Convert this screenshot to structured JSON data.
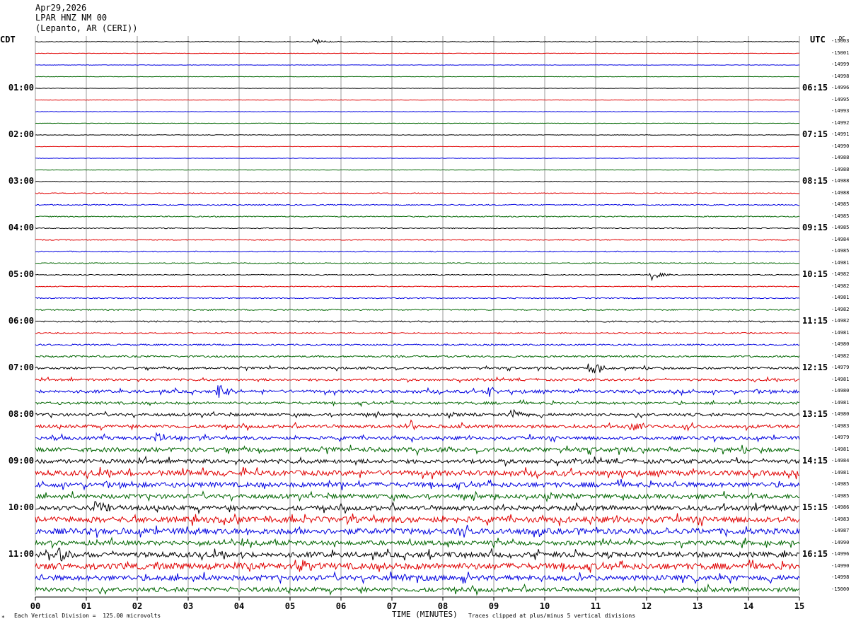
{
  "header": {
    "date": "Apr29,2026",
    "channel": "LPAR HNZ NM 00",
    "location": "(Lepanto, AR (CERI))"
  },
  "left_tz": "CDT",
  "right_tz": "UTC",
  "dc_label": "DC",
  "footer": {
    "division": "Each Vertical Division =  125.00 microvolts",
    "clip_note": "Traces clipped at plus/minus 5 vertical divisions"
  },
  "chart_data": {
    "type": "line",
    "title": "Apr29,2026",
    "xlabel": "TIME (MINUTES)",
    "x_ticks": [
      "00",
      "01",
      "02",
      "03",
      "04",
      "05",
      "06",
      "07",
      "08",
      "09",
      "10",
      "11",
      "12",
      "13",
      "14",
      "15"
    ],
    "xlim": [
      0,
      15
    ],
    "left_hour_labels": [
      "01:00",
      "02:00",
      "03:00",
      "04:00",
      "05:00",
      "06:00",
      "07:00",
      "08:00",
      "09:00",
      "10:00",
      "11:00"
    ],
    "right_hour_labels": [
      "06:15",
      "07:15",
      "08:15",
      "09:15",
      "10:15",
      "11:15",
      "12:15",
      "13:15",
      "14:15",
      "15:15",
      "16:15"
    ],
    "trace_colors": [
      "#000000",
      "#e00000",
      "#0000e0",
      "#006600"
    ],
    "dc_offsets": [
      -15003,
      -15001,
      -14999,
      -14998,
      -14996,
      -14995,
      -14993,
      -14992,
      -14991,
      -14990,
      -14988,
      -14988,
      -14988,
      -14988,
      -14985,
      -14985,
      -14985,
      -14984,
      -14985,
      -14981,
      -14982,
      -14982,
      -14981,
      -14982,
      -14982,
      -14981,
      -14980,
      -14982,
      -14979,
      -14981,
      -14980,
      -14981,
      -14980,
      -14983,
      -14979,
      -14981,
      -14984,
      -14981,
      -14985,
      -14985,
      -14986,
      -14983,
      -14987,
      -14990,
      -14996,
      -14990,
      -14998,
      -15000
    ],
    "noise_level": [
      1.0,
      0.6,
      0.6,
      0.6,
      0.6,
      0.6,
      0.6,
      0.6,
      0.8,
      0.6,
      0.6,
      0.6,
      1.0,
      1.2,
      1.5,
      1.5,
      1.3,
      1.3,
      1.4,
      1.4,
      1.3,
      1.2,
      1.5,
      1.8,
      2.0,
      2.0,
      2.2,
      2.5,
      3.0,
      3.0,
      4.0,
      3.5,
      4.0,
      4.5,
      4.5,
      6.0,
      5.5,
      7.0,
      6.5,
      6.0,
      6.5,
      8.0,
      8.0,
      6.0,
      7.0,
      8.5,
      7.0,
      6.0
    ],
    "events": [
      {
        "trace": 0,
        "minute": 5.5,
        "amp": 4
      },
      {
        "trace": 20,
        "minute": 12.1,
        "amp": 8
      },
      {
        "trace": 28,
        "minute": 10.9,
        "amp": 10
      },
      {
        "trace": 30,
        "minute": 3.6,
        "amp": 12
      },
      {
        "trace": 30,
        "minute": 8.9,
        "amp": 8
      },
      {
        "trace": 32,
        "minute": 9.3,
        "amp": 10
      },
      {
        "trace": 33,
        "minute": 7.4,
        "amp": 10
      },
      {
        "trace": 33,
        "minute": 11.7,
        "amp": 10
      },
      {
        "trace": 34,
        "minute": 2.4,
        "amp": 8
      },
      {
        "trace": 37,
        "minute": 1.7,
        "amp": 12
      },
      {
        "trace": 38,
        "minute": 5.8,
        "amp": 12
      },
      {
        "trace": 40,
        "minute": 1.2,
        "amp": 12
      },
      {
        "trace": 42,
        "minute": 3.0,
        "amp": 10
      },
      {
        "trace": 44,
        "minute": 0.5,
        "amp": 12
      },
      {
        "trace": 45,
        "minute": 5.2,
        "amp": 10
      },
      {
        "trace": 46,
        "minute": 7.0,
        "amp": 12
      }
    ]
  }
}
